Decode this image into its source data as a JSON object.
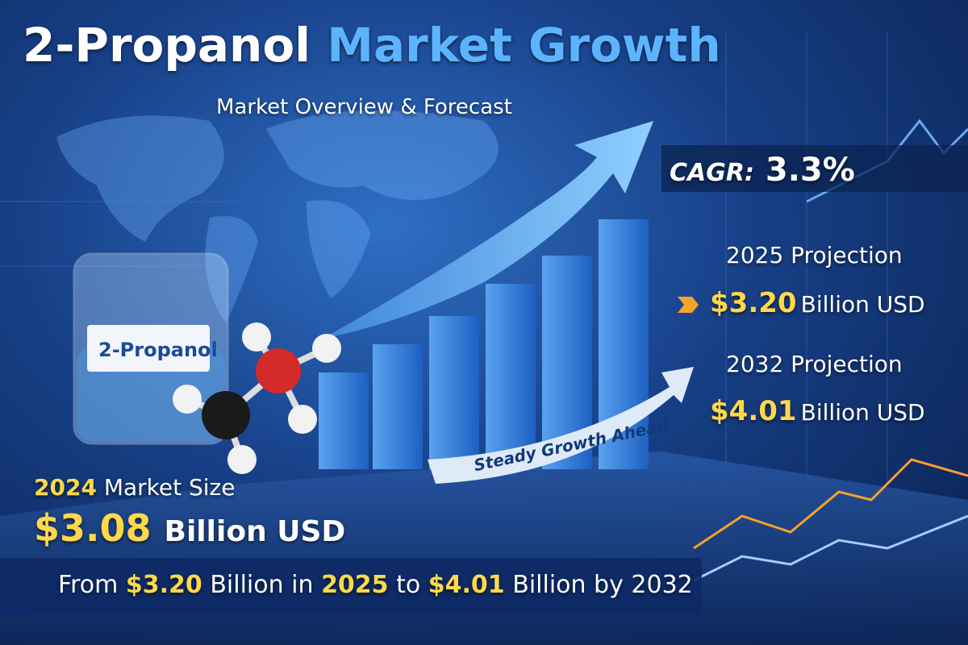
{
  "title": {
    "part1": "2-Propanol",
    "part2": "Market Growth"
  },
  "subtitle": "Market Overview & Forecast",
  "cagr": {
    "label": "CAGR:",
    "value": "3.3%"
  },
  "projection_2025": {
    "label": "2025 Projection",
    "amount": "$3.20",
    "unit": "Billion USD"
  },
  "projection_2032": {
    "label": "2032 Projection",
    "amount": "$4.01",
    "unit": "Billion USD"
  },
  "beaker_label": "2-Propanol",
  "arrow_label": "Steady Growth Ahead",
  "market_size": {
    "year": "2024",
    "label": "Market Size",
    "amount": "$3.08",
    "unit": "Billion USD"
  },
  "footer": {
    "from": "From",
    "amount_start": "$3.20",
    "mid": "Billion in",
    "year_start": "2025",
    "to": "to",
    "amount_end": "$4.01",
    "end": "Billion by 2032"
  }
}
